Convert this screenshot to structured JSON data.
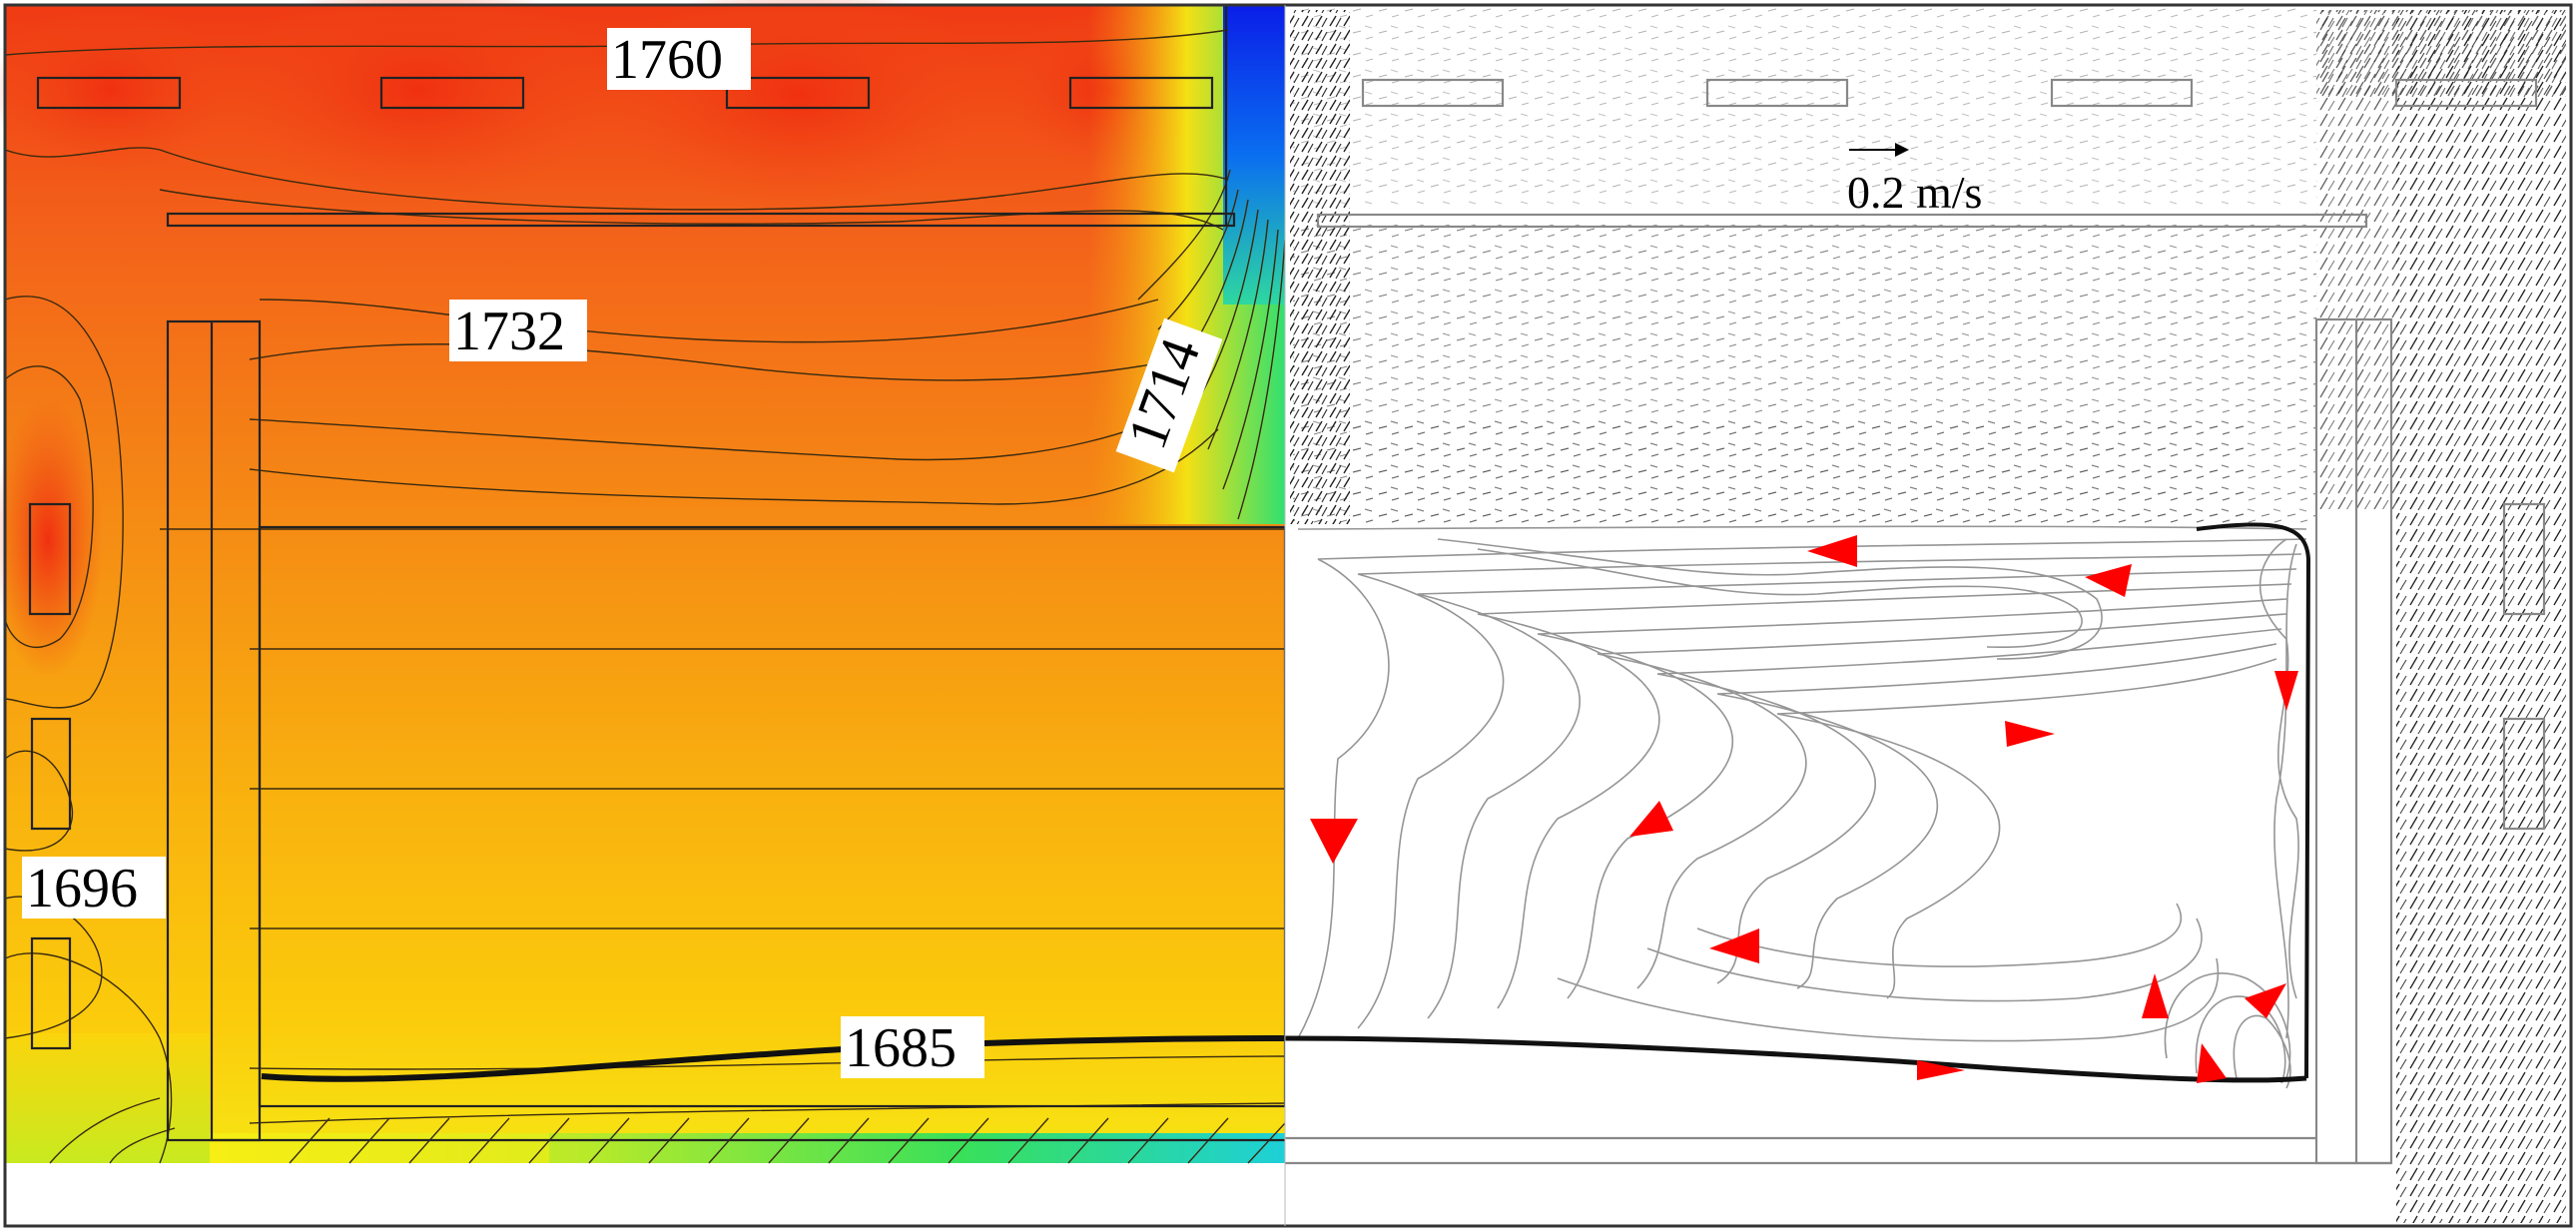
{
  "figure": {
    "contour_labels": {
      "top": "1760",
      "middle": "1732",
      "corner": "1714",
      "left": "1696",
      "liquidus": "1685"
    },
    "velocity_scale": {
      "label": "0.2 m/s"
    },
    "colors": {
      "hot": "#f03a14",
      "warm": "#f58c14",
      "mid": "#fbc40c",
      "cool": "#f4ef14",
      "green": "#38e05a",
      "cyan": "#1ed0d8",
      "blue": "#0a1ee8",
      "arrow": "#ff0000"
    }
  }
}
